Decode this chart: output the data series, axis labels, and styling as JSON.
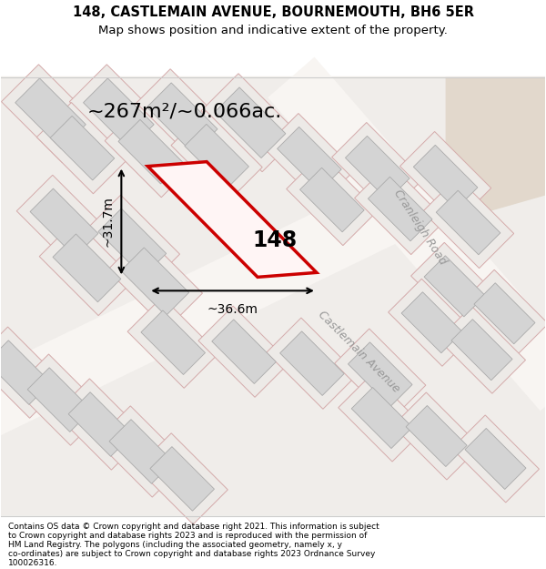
{
  "title_line1": "148, CASTLEMAIN AVENUE, BOURNEMOUTH, BH6 5ER",
  "title_line2": "Map shows position and indicative extent of the property.",
  "footer_lines": [
    "Contains OS data © Crown copyright and database right 2021. This information is subject",
    "to Crown copyright and database rights 2023 and is reproduced with the permission of",
    "HM Land Registry. The polygons (including the associated geometry, namely x, y",
    "co-ordinates) are subject to Crown copyright and database rights 2023 Ordnance Survey",
    "100026316."
  ],
  "area_text": "~267m²/~0.066ac.",
  "label_148": "148",
  "dim_width": "~36.6m",
  "dim_height": "~31.7m",
  "road_cranleigh": "Cranleigh Road",
  "road_castlemain": "Castlemain Avenue",
  "map_bg": "#f0edea",
  "building_fill": "#d4d4d4",
  "building_edge": "#aaaaaa",
  "plot_fill": "#edeae7",
  "plot_edge": "#d4aaaa",
  "road_fill": "#f8f5f2",
  "highlight_color": "#cc0000",
  "highlight_fill": "#fff5f5",
  "corner_fill": "#e2d8cc",
  "road_label_color": "#999999",
  "white": "#ffffff"
}
